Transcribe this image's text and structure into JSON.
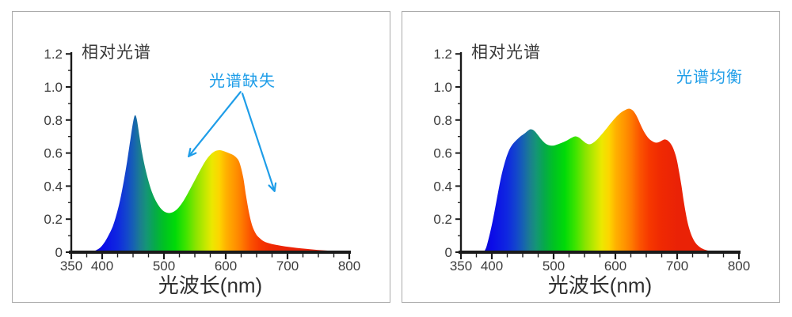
{
  "page": {
    "background": "#ffffff",
    "card_border": "#ababab",
    "card_background": "#ffffff"
  },
  "colors": {
    "annotation": "#1E9DE8",
    "axis": "#1a1a1a",
    "tick_text": "#3c3c3c",
    "title_text": "#383838",
    "xlabel_text": "#2f2f2f",
    "spectrum_stops": [
      [
        385,
        "#0a08cc"
      ],
      [
        400,
        "#0b0be8"
      ],
      [
        425,
        "#0f28e0"
      ],
      [
        440,
        "#1347cc"
      ],
      [
        452,
        "#1765ae"
      ],
      [
        462,
        "#1b7f8e"
      ],
      [
        472,
        "#149676"
      ],
      [
        485,
        "#06aa4a"
      ],
      [
        500,
        "#00c222"
      ],
      [
        518,
        "#00da08"
      ],
      [
        535,
        "#3ce400"
      ],
      [
        552,
        "#8ce400"
      ],
      [
        566,
        "#bfe800"
      ],
      [
        578,
        "#ece800"
      ],
      [
        590,
        "#fdd400"
      ],
      [
        602,
        "#ffae00"
      ],
      [
        614,
        "#ff9600"
      ],
      [
        625,
        "#fe7d00"
      ],
      [
        640,
        "#fb5300"
      ],
      [
        655,
        "#f63800"
      ],
      [
        672,
        "#f02a02"
      ],
      [
        700,
        "#ea2206"
      ],
      [
        800,
        "#e82008"
      ]
    ]
  },
  "chart_data": [
    {
      "type": "area",
      "title": "相对光谱",
      "xlabel": "光波长(nm)",
      "annotation": {
        "text": "光谱缺失"
      },
      "x_range": [
        350,
        800
      ],
      "y_range": [
        0,
        1.2
      ],
      "x_major_ticks": [
        350,
        400,
        500,
        600,
        700,
        800
      ],
      "x_minor_step": 25,
      "y_major_ticks": [
        "0",
        "0.2",
        "0.4",
        "0.6",
        "0.8",
        "1.0",
        "1.2"
      ],
      "y_minor_step": 0.1,
      "grid": false,
      "legend": null,
      "points": [
        [
          381,
          0
        ],
        [
          388,
          0.008
        ],
        [
          396,
          0.025
        ],
        [
          403,
          0.055
        ],
        [
          410,
          0.1
        ],
        [
          417,
          0.155
        ],
        [
          423,
          0.225
        ],
        [
          429,
          0.315
        ],
        [
          435,
          0.43
        ],
        [
          441,
          0.565
        ],
        [
          446,
          0.69
        ],
        [
          450,
          0.785
        ],
        [
          453,
          0.828
        ],
        [
          456,
          0.805
        ],
        [
          460,
          0.71
        ],
        [
          464,
          0.615
        ],
        [
          469,
          0.52
        ],
        [
          475,
          0.43
        ],
        [
          482,
          0.35
        ],
        [
          490,
          0.29
        ],
        [
          498,
          0.253
        ],
        [
          506,
          0.238
        ],
        [
          513,
          0.24
        ],
        [
          520,
          0.256
        ],
        [
          528,
          0.29
        ],
        [
          537,
          0.345
        ],
        [
          547,
          0.415
        ],
        [
          557,
          0.485
        ],
        [
          566,
          0.545
        ],
        [
          574,
          0.585
        ],
        [
          582,
          0.61
        ],
        [
          590,
          0.617
        ],
        [
          598,
          0.61
        ],
        [
          606,
          0.598
        ],
        [
          612,
          0.588
        ],
        [
          617,
          0.573
        ],
        [
          622,
          0.545
        ],
        [
          628,
          0.46
        ],
        [
          633,
          0.34
        ],
        [
          638,
          0.235
        ],
        [
          643,
          0.16
        ],
        [
          649,
          0.11
        ],
        [
          655,
          0.085
        ],
        [
          662,
          0.065
        ],
        [
          672,
          0.052
        ],
        [
          685,
          0.042
        ],
        [
          700,
          0.033
        ],
        [
          715,
          0.026
        ],
        [
          730,
          0.02
        ],
        [
          750,
          0.013
        ],
        [
          770,
          0.008
        ],
        [
          788,
          0.004
        ],
        [
          800,
          0.002
        ]
      ],
      "arrows": [
        {
          "from": [
            624,
            0.97
          ],
          "to": [
            540,
            0.58
          ]
        },
        {
          "from": [
            627,
            0.96
          ],
          "to": [
            679,
            0.37
          ]
        }
      ]
    },
    {
      "type": "area",
      "title": "相对光谱",
      "xlabel": "光波长(nm)",
      "annotation": {
        "text": "光谱均衡"
      },
      "x_range": [
        350,
        800
      ],
      "y_range": [
        0,
        1.2
      ],
      "x_major_ticks": [
        350,
        400,
        500,
        600,
        700,
        800
      ],
      "x_minor_step": 25,
      "y_major_ticks": [
        "0",
        "0.2",
        "0.4",
        "0.6",
        "0.8",
        "1.0",
        "1.2"
      ],
      "y_minor_step": 0.1,
      "grid": false,
      "legend": null,
      "points": [
        [
          387,
          0
        ],
        [
          391,
          0.03
        ],
        [
          395,
          0.085
        ],
        [
          400,
          0.165
        ],
        [
          405,
          0.26
        ],
        [
          410,
          0.36
        ],
        [
          415,
          0.455
        ],
        [
          420,
          0.53
        ],
        [
          426,
          0.6
        ],
        [
          432,
          0.645
        ],
        [
          439,
          0.675
        ],
        [
          446,
          0.7
        ],
        [
          453,
          0.718
        ],
        [
          459,
          0.737
        ],
        [
          463,
          0.744
        ],
        [
          468,
          0.737
        ],
        [
          474,
          0.712
        ],
        [
          480,
          0.683
        ],
        [
          486,
          0.66
        ],
        [
          492,
          0.648
        ],
        [
          499,
          0.645
        ],
        [
          506,
          0.652
        ],
        [
          514,
          0.663
        ],
        [
          522,
          0.677
        ],
        [
          529,
          0.692
        ],
        [
          535,
          0.701
        ],
        [
          541,
          0.694
        ],
        [
          547,
          0.676
        ],
        [
          553,
          0.659
        ],
        [
          558,
          0.653
        ],
        [
          564,
          0.662
        ],
        [
          571,
          0.684
        ],
        [
          579,
          0.718
        ],
        [
          587,
          0.755
        ],
        [
          595,
          0.792
        ],
        [
          603,
          0.825
        ],
        [
          611,
          0.85
        ],
        [
          618,
          0.864
        ],
        [
          623,
          0.868
        ],
        [
          629,
          0.855
        ],
        [
          635,
          0.82
        ],
        [
          641,
          0.77
        ],
        [
          647,
          0.725
        ],
        [
          653,
          0.693
        ],
        [
          659,
          0.673
        ],
        [
          665,
          0.663
        ],
        [
          671,
          0.667
        ],
        [
          677,
          0.679
        ],
        [
          681,
          0.682
        ],
        [
          686,
          0.672
        ],
        [
          691,
          0.648
        ],
        [
          695,
          0.615
        ],
        [
          699,
          0.566
        ],
        [
          703,
          0.49
        ],
        [
          707,
          0.4
        ],
        [
          711,
          0.3
        ],
        [
          715,
          0.215
        ],
        [
          719,
          0.15
        ],
        [
          724,
          0.095
        ],
        [
          730,
          0.055
        ],
        [
          737,
          0.03
        ],
        [
          745,
          0.015
        ],
        [
          754,
          0.007
        ],
        [
          764,
          0.003
        ],
        [
          775,
          0.001
        ]
      ],
      "arrows": null
    }
  ]
}
